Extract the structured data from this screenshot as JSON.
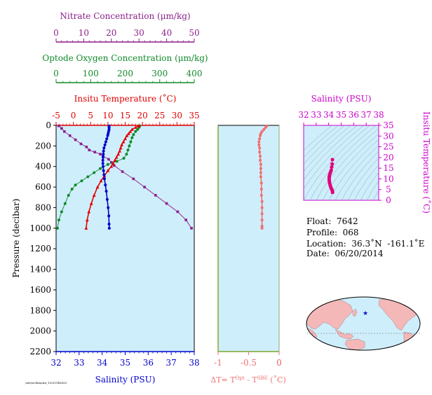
{
  "chart_data": [
    {
      "type": "line",
      "panel": "profile",
      "ylabel": "Pressure (decibar)",
      "y_axis": {
        "ylim": [
          2200,
          0
        ],
        "ticks": [
          0,
          200,
          400,
          600,
          800,
          1000,
          1200,
          1400,
          1600,
          1800,
          2000,
          2200
        ]
      },
      "axes": {
        "nitrate": {
          "label": "Nitrate Concentration (μm/kg)",
          "range": [
            0,
            50
          ],
          "ticks": [
            "0",
            "10",
            "20",
            "30",
            "40",
            "50"
          ],
          "color": "#8b1e8b"
        },
        "oxygen": {
          "label": "Optode Oxygen Concentration (μm/kg)",
          "range": [
            0,
            400
          ],
          "ticks": [
            "0",
            "100",
            "200",
            "300",
            "400"
          ],
          "color": "#108a2a"
        },
        "temperature": {
          "label": "Insitu Temperature (˚C)",
          "range": [
            -5,
            35
          ],
          "ticks": [
            "-5",
            "0",
            "5",
            "10",
            "15",
            "20",
            "25",
            "30",
            "35"
          ],
          "color": "#e00000"
        },
        "salinity": {
          "label": "Salinity (PSU)",
          "range": [
            32,
            38
          ],
          "ticks": [
            "32",
            "33",
            "34",
            "35",
            "36",
            "37",
            "38"
          ],
          "color": "#0000cc"
        }
      },
      "series": [
        {
          "axis": "nitrate",
          "points": [
            [
              1,
              5
            ],
            [
              2,
              30
            ],
            [
              3,
              60
            ],
            [
              5,
              100
            ],
            [
              7,
              140
            ],
            [
              9,
              180
            ],
            [
              11,
              210
            ],
            [
              12,
              240
            ],
            [
              14,
              260
            ],
            [
              16,
              280
            ],
            [
              17,
              300
            ],
            [
              19,
              330
            ],
            [
              20,
              360
            ],
            [
              21,
              390
            ],
            [
              24,
              450
            ],
            [
              28,
              520
            ],
            [
              32,
              600
            ],
            [
              36,
              680
            ],
            [
              40,
              760
            ],
            [
              44,
              840
            ],
            [
              47,
              920
            ],
            [
              49,
              1000
            ]
          ]
        },
        {
          "axis": "oxygen",
          "points": [
            [
              242,
              5
            ],
            [
              240,
              20
            ],
            [
              236,
              40
            ],
            [
              230,
              60
            ],
            [
              224,
              90
            ],
            [
              220,
              120
            ],
            [
              216,
              160
            ],
            [
              212,
              200
            ],
            [
              208,
              240
            ],
            [
              204,
              280
            ],
            [
              196,
              320
            ],
            [
              176,
              350
            ],
            [
              150,
              380
            ],
            [
              128,
              420
            ],
            [
              110,
              460
            ],
            [
              92,
              500
            ],
            [
              74,
              540
            ],
            [
              56,
              580
            ],
            [
              46,
              620
            ],
            [
              36,
              680
            ],
            [
              26,
              760
            ],
            [
              16,
              840
            ],
            [
              8,
              920
            ],
            [
              4,
              1000
            ]
          ]
        },
        {
          "axis": "temperature",
          "points": [
            [
              19,
              5
            ],
            [
              18,
              20
            ],
            [
              17,
              40
            ],
            [
              16.5,
              60
            ],
            [
              16,
              80
            ],
            [
              15.5,
              100
            ],
            [
              15,
              130
            ],
            [
              14.5,
              160
            ],
            [
              14,
              190
            ],
            [
              13.7,
              220
            ],
            [
              13.4,
              250
            ],
            [
              13,
              280
            ],
            [
              12.5,
              310
            ],
            [
              12,
              340
            ],
            [
              11.5,
              370
            ],
            [
              11,
              400
            ],
            [
              10,
              440
            ],
            [
              9,
              490
            ],
            [
              8,
              540
            ],
            [
              7,
              600
            ],
            [
              6,
              680
            ],
            [
              5.2,
              760
            ],
            [
              4.5,
              840
            ],
            [
              4,
              920
            ],
            [
              3.7,
              1000
            ]
          ]
        },
        {
          "axis": "salinity",
          "points": [
            [
              34.3,
              5
            ],
            [
              34.3,
              20
            ],
            [
              34.3,
              40
            ],
            [
              34.28,
              60
            ],
            [
              34.26,
              80
            ],
            [
              34.24,
              100
            ],
            [
              34.2,
              130
            ],
            [
              34.16,
              160
            ],
            [
              34.12,
              190
            ],
            [
              34.08,
              220
            ],
            [
              34.06,
              250
            ],
            [
              34.05,
              280
            ],
            [
              34.04,
              310
            ],
            [
              34.03,
              340
            ],
            [
              34.03,
              370
            ],
            [
              34.04,
              400
            ],
            [
              34.06,
              440
            ],
            [
              34.08,
              480
            ],
            [
              34.1,
              520
            ],
            [
              34.14,
              580
            ],
            [
              34.18,
              640
            ],
            [
              34.22,
              720
            ],
            [
              34.26,
              800
            ],
            [
              34.29,
              880
            ],
            [
              34.3,
              960
            ],
            [
              34.31,
              1000
            ]
          ]
        }
      ]
    },
    {
      "type": "line",
      "panel": "delta-t",
      "xlabel": "ΔT= T^Opt - T^SBE (˚C)",
      "xlim": [
        -1,
        0
      ],
      "x_ticks": [
        "-1",
        "-0.5",
        "0",
        "0"
      ],
      "color": "#f07070",
      "points": [
        [
          -0.2,
          5
        ],
        [
          -0.22,
          20
        ],
        [
          -0.25,
          40
        ],
        [
          -0.28,
          60
        ],
        [
          -0.3,
          80
        ],
        [
          -0.31,
          100
        ],
        [
          -0.32,
          130
        ],
        [
          -0.33,
          160
        ],
        [
          -0.33,
          190
        ],
        [
          -0.32,
          220
        ],
        [
          -0.32,
          260
        ],
        [
          -0.31,
          300
        ],
        [
          -0.31,
          340
        ],
        [
          -0.3,
          380
        ],
        [
          -0.3,
          420
        ],
        [
          -0.3,
          460
        ],
        [
          -0.3,
          500
        ],
        [
          -0.29,
          560
        ],
        [
          -0.29,
          620
        ],
        [
          -0.29,
          680
        ],
        [
          -0.28,
          740
        ],
        [
          -0.28,
          800
        ],
        [
          -0.28,
          860
        ],
        [
          -0.28,
          920
        ],
        [
          -0.28,
          980
        ],
        [
          -0.28,
          1000
        ]
      ]
    },
    {
      "type": "scatter",
      "panel": "ts-diagram",
      "title": "Salinity (PSU)",
      "ylabel": "Insitu Temperature (˚C)",
      "xlim": [
        32,
        38
      ],
      "ylim": [
        0,
        35
      ],
      "x_ticks": [
        "32",
        "33",
        "34",
        "35",
        "36",
        "37",
        "38"
      ],
      "y_ticks": [
        "0",
        "5",
        "10",
        "15",
        "20",
        "25",
        "30",
        "35"
      ],
      "color": "#e0007a",
      "points": [
        [
          34.3,
          19
        ],
        [
          34.28,
          17
        ],
        [
          34.24,
          15.5
        ],
        [
          34.2,
          14
        ],
        [
          34.14,
          13
        ],
        [
          34.08,
          12
        ],
        [
          34.05,
          11
        ],
        [
          34.04,
          10
        ],
        [
          34.05,
          9
        ],
        [
          34.08,
          8
        ],
        [
          34.12,
          7
        ],
        [
          34.18,
          6
        ],
        [
          34.24,
          5.2
        ],
        [
          34.29,
          4.5
        ],
        [
          34.31,
          3.7
        ]
      ]
    }
  ],
  "float_info": {
    "float": "Float:  7642",
    "profile": "Profile:  068",
    "location": "Location:  36.3˚N  -161.1˚E",
    "date": "Date:  06/20/2014"
  },
  "footnote": "/net/sr/data/int_10/20140620",
  "map": {
    "land_color": "#f4b8b8",
    "ocean_color": "#cfeefb",
    "marker_color": "#1010cc"
  }
}
